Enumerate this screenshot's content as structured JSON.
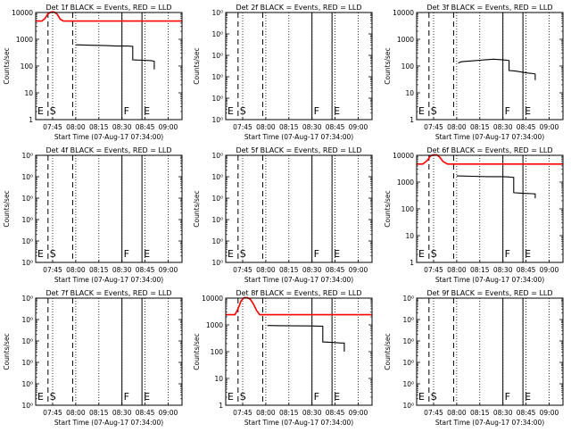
{
  "chart_data": [
    {
      "type": "line",
      "title": "Det 1f BLACK = Events, RED = LLD",
      "xlabel": "Start Time (07-Aug-17 07:34:00)",
      "ylabel": "Counts/sec",
      "yscale": "log",
      "ylim": [
        1,
        10000
      ],
      "ytick_labels": [
        "1",
        "10",
        "100",
        "1000",
        "10000"
      ],
      "xlim": [
        "07:34",
        "09:09"
      ],
      "xtick_labels": [
        "07:45",
        "08:00",
        "08:15",
        "08:30",
        "08:45",
        "09:00"
      ],
      "markers": [
        {
          "label": "E",
          "x": "07:34",
          "style": "dashed"
        },
        {
          "label": "S",
          "x": "07:42",
          "style": "dashed"
        },
        {
          "label": "",
          "x": "07:58",
          "style": "dashed"
        },
        {
          "label": "F",
          "x": "08:30",
          "style": "solid"
        },
        {
          "label": "E",
          "x": "08:43",
          "style": "solid"
        }
      ],
      "series": [
        {
          "color": "#ff0000",
          "x": [
            "07:34",
            "07:38",
            "07:40",
            "07:42",
            "07:44",
            "07:46",
            "07:48",
            "07:50",
            "07:52",
            "08:00",
            "08:30",
            "09:09"
          ],
          "y": [
            4800,
            4800,
            6000,
            9000,
            10500,
            10500,
            8500,
            5600,
            4800,
            4800,
            4800,
            4800
          ]
        },
        {
          "color": "#000000",
          "x": [
            "08:00",
            "08:10",
            "08:20",
            "08:27",
            "08:30",
            "08:34",
            "08:37",
            "08:37",
            "08:44",
            "08:49",
            "08:51",
            "08:51"
          ],
          "y": [
            620,
            600,
            580,
            560,
            560,
            560,
            540,
            170,
            165,
            160,
            150,
            75
          ]
        }
      ]
    },
    {
      "type": "line",
      "title": "Det 2f BLACK = Events, RED = LLD",
      "xlabel": "Start Time (07-Aug-17 07:34:00)",
      "ylabel": "Counts/sec",
      "yscale": "log",
      "ylim": [
        1,
        10
      ],
      "ytick_labels": [
        "10⁰",
        "10⁰",
        "10⁰",
        "10⁰",
        "10⁰",
        "10⁰"
      ],
      "xlim": [
        "07:34",
        "09:09"
      ],
      "xtick_labels": [
        "07:45",
        "08:00",
        "08:15",
        "08:30",
        "08:45",
        "09:00"
      ],
      "markers": [
        {
          "label": "E",
          "x": "07:34",
          "style": "dashed"
        },
        {
          "label": "S",
          "x": "07:42",
          "style": "dashed"
        },
        {
          "label": "",
          "x": "07:58",
          "style": "dashed"
        },
        {
          "label": "F",
          "x": "08:30",
          "style": "solid"
        },
        {
          "label": "E",
          "x": "08:43",
          "style": "solid"
        }
      ],
      "series": []
    },
    {
      "type": "line",
      "title": "Det 3f BLACK = Events, RED = LLD",
      "xlabel": "Start Time (07-Aug-17 07:34:00)",
      "ylabel": "Counts/sec",
      "yscale": "log",
      "ylim": [
        1,
        10000
      ],
      "ytick_labels": [
        "1",
        "10",
        "100",
        "1000",
        "10000"
      ],
      "xlim": [
        "07:34",
        "09:09"
      ],
      "xtick_labels": [
        "07:45",
        "08:00",
        "08:15",
        "08:30",
        "08:45",
        "09:00"
      ],
      "markers": [
        {
          "label": "E",
          "x": "07:34",
          "style": "dashed"
        },
        {
          "label": "S",
          "x": "07:42",
          "style": "dashed"
        },
        {
          "label": "",
          "x": "07:58",
          "style": "dashed"
        },
        {
          "label": "F",
          "x": "08:30",
          "style": "solid"
        },
        {
          "label": "E",
          "x": "08:43",
          "style": "solid"
        }
      ],
      "series": [
        {
          "color": "#000000",
          "x": [
            "08:01",
            "08:03",
            "08:06",
            "08:09",
            "08:12",
            "08:15",
            "08:18",
            "08:21",
            "08:24",
            "08:27",
            "08:30",
            "08:33",
            "08:34",
            "08:34",
            "08:38",
            "08:42",
            "08:46",
            "08:50",
            "08:51",
            "08:51"
          ],
          "y": [
            130,
            145,
            150,
            155,
            160,
            165,
            170,
            175,
            180,
            175,
            170,
            165,
            160,
            68,
            65,
            60,
            55,
            52,
            50,
            30
          ]
        }
      ]
    },
    {
      "type": "line",
      "title": "Det 4f BLACK = Events, RED = LLD",
      "xlabel": "Start Time (07-Aug-17 07:34:00)",
      "ylabel": "Counts/sec",
      "yscale": "log",
      "ylim": [
        1,
        10
      ],
      "ytick_labels": [
        "10⁰",
        "10⁰",
        "10⁰",
        "10⁰",
        "10⁰",
        "10⁰"
      ],
      "xlim": [
        "07:34",
        "09:09"
      ],
      "xtick_labels": [
        "07:45",
        "08:00",
        "08:15",
        "08:30",
        "08:45",
        "09:00"
      ],
      "markers": [
        {
          "label": "E",
          "x": "07:34",
          "style": "dashed"
        },
        {
          "label": "S",
          "x": "07:42",
          "style": "dashed"
        },
        {
          "label": "",
          "x": "07:58",
          "style": "dashed"
        },
        {
          "label": "F",
          "x": "08:30",
          "style": "solid"
        },
        {
          "label": "E",
          "x": "08:43",
          "style": "solid"
        }
      ],
      "series": []
    },
    {
      "type": "line",
      "title": "Det 5f BLACK = Events, RED = LLD",
      "xlabel": "Start Time (07-Aug-17 07:34:00)",
      "ylabel": "Counts/sec",
      "yscale": "log",
      "ylim": [
        1,
        10
      ],
      "ytick_labels": [
        "10⁰",
        "10⁰",
        "10⁰",
        "10⁰",
        "10⁰",
        "10⁰"
      ],
      "xlim": [
        "07:34",
        "09:09"
      ],
      "xtick_labels": [
        "07:45",
        "08:00",
        "08:15",
        "08:30",
        "08:45",
        "09:00"
      ],
      "markers": [
        {
          "label": "E",
          "x": "07:34",
          "style": "dashed"
        },
        {
          "label": "S",
          "x": "07:42",
          "style": "dashed"
        },
        {
          "label": "",
          "x": "07:58",
          "style": "dashed"
        },
        {
          "label": "F",
          "x": "08:30",
          "style": "solid"
        },
        {
          "label": "E",
          "x": "08:43",
          "style": "solid"
        }
      ],
      "series": []
    },
    {
      "type": "line",
      "title": "Det 6f BLACK = Events, RED = LLD",
      "xlabel": "Start Time (07-Aug-17 07:34:00)",
      "ylabel": "Counts/sec",
      "yscale": "log",
      "ylim": [
        1,
        10000
      ],
      "ytick_labels": [
        "1",
        "10",
        "100",
        "1000",
        "10000"
      ],
      "xlim": [
        "07:34",
        "09:09"
      ],
      "xtick_labels": [
        "07:45",
        "08:00",
        "08:15",
        "08:30",
        "08:45",
        "09:00"
      ],
      "markers": [
        {
          "label": "E",
          "x": "07:34",
          "style": "dashed"
        },
        {
          "label": "S",
          "x": "07:42",
          "style": "dashed"
        },
        {
          "label": "",
          "x": "07:58",
          "style": "dashed"
        },
        {
          "label": "F",
          "x": "08:30",
          "style": "solid"
        },
        {
          "label": "E",
          "x": "08:43",
          "style": "solid"
        }
      ],
      "series": [
        {
          "color": "#ff0000",
          "x": [
            "07:34",
            "07:38",
            "07:41",
            "07:43",
            "07:45",
            "07:47",
            "07:49",
            "07:51",
            "07:54",
            "08:00",
            "08:30",
            "09:09"
          ],
          "y": [
            4700,
            4700,
            6500,
            9500,
            10500,
            10500,
            8500,
            6000,
            4700,
            4700,
            4700,
            4700
          ]
        },
        {
          "color": "#000000",
          "x": [
            "08:00",
            "08:10",
            "08:20",
            "08:30",
            "08:34",
            "08:37",
            "08:37",
            "08:43",
            "08:49",
            "08:51",
            "08:51"
          ],
          "y": [
            1700,
            1650,
            1600,
            1600,
            1550,
            1500,
            400,
            380,
            370,
            360,
            250
          ]
        }
      ]
    },
    {
      "type": "line",
      "title": "Det 7f BLACK = Events, RED = LLD",
      "xlabel": "Start Time (07-Aug-17 07:34:00)",
      "ylabel": "Counts/sec",
      "yscale": "log",
      "ylim": [
        1,
        10
      ],
      "ytick_labels": [
        "10⁰",
        "10⁰",
        "10⁰",
        "10⁰",
        "10⁰",
        "10⁰"
      ],
      "xlim": [
        "07:34",
        "09:09"
      ],
      "xtick_labels": [
        "07:45",
        "08:00",
        "08:15",
        "08:30",
        "08:45",
        "09:00"
      ],
      "markers": [
        {
          "label": "E",
          "x": "07:34",
          "style": "dashed"
        },
        {
          "label": "S",
          "x": "07:42",
          "style": "dashed"
        },
        {
          "label": "",
          "x": "07:58",
          "style": "dashed"
        },
        {
          "label": "F",
          "x": "08:30",
          "style": "solid"
        },
        {
          "label": "E",
          "x": "08:43",
          "style": "solid"
        }
      ],
      "series": []
    },
    {
      "type": "line",
      "title": "Det 8f BLACK = Events, RED = LLD",
      "xlabel": "Start Time (07-Aug-17 07:34:00)",
      "ylabel": "Counts/sec",
      "yscale": "log",
      "ylim": [
        1,
        10000
      ],
      "ytick_labels": [
        "1",
        "10",
        "100",
        "1000",
        "10000"
      ],
      "xlim": [
        "07:34",
        "09:09"
      ],
      "xtick_labels": [
        "07:45",
        "08:00",
        "08:15",
        "08:30",
        "08:45",
        "09:00"
      ],
      "markers": [
        {
          "label": "E",
          "x": "07:34",
          "style": "dashed"
        },
        {
          "label": "S",
          "x": "07:42",
          "style": "dashed"
        },
        {
          "label": "",
          "x": "07:58",
          "style": "dashed"
        },
        {
          "label": "F",
          "x": "08:30",
          "style": "solid"
        },
        {
          "label": "E",
          "x": "08:43",
          "style": "solid"
        }
      ],
      "series": [
        {
          "color": "#ff0000",
          "x": [
            "07:34",
            "07:40",
            "07:42",
            "07:44",
            "07:46",
            "07:48",
            "07:50",
            "07:52",
            "07:54",
            "07:56",
            "08:00",
            "08:30",
            "09:09"
          ],
          "y": [
            2400,
            2400,
            4000,
            8000,
            10500,
            10500,
            9000,
            6000,
            3500,
            2400,
            2400,
            2400,
            2400
          ]
        },
        {
          "color": "#000000",
          "x": [
            "08:01",
            "08:10",
            "08:20",
            "08:30",
            "08:35",
            "08:37",
            "08:37",
            "08:44",
            "08:49",
            "08:51",
            "08:51"
          ],
          "y": [
            950,
            930,
            920,
            910,
            900,
            900,
            230,
            220,
            210,
            210,
            100
          ]
        }
      ]
    },
    {
      "type": "line",
      "title": "Det 9f BLACK = Events, RED = LLD",
      "xlabel": "Start Time (07-Aug-17 07:34:00)",
      "ylabel": "Counts/sec",
      "yscale": "log",
      "ylim": [
        1,
        10
      ],
      "ytick_labels": [
        "10⁰",
        "10⁰",
        "10⁰",
        "10⁰",
        "10⁰",
        "10⁰"
      ],
      "xlim": [
        "07:34",
        "09:09"
      ],
      "xtick_labels": [
        "07:45",
        "08:00",
        "08:15",
        "08:30",
        "08:45",
        "09:00"
      ],
      "markers": [
        {
          "label": "E",
          "x": "07:34",
          "style": "dashed"
        },
        {
          "label": "S",
          "x": "07:42",
          "style": "dashed"
        },
        {
          "label": "",
          "x": "07:58",
          "style": "dashed"
        },
        {
          "label": "F",
          "x": "08:30",
          "style": "solid"
        },
        {
          "label": "E",
          "x": "08:43",
          "style": "solid"
        }
      ],
      "series": []
    }
  ]
}
